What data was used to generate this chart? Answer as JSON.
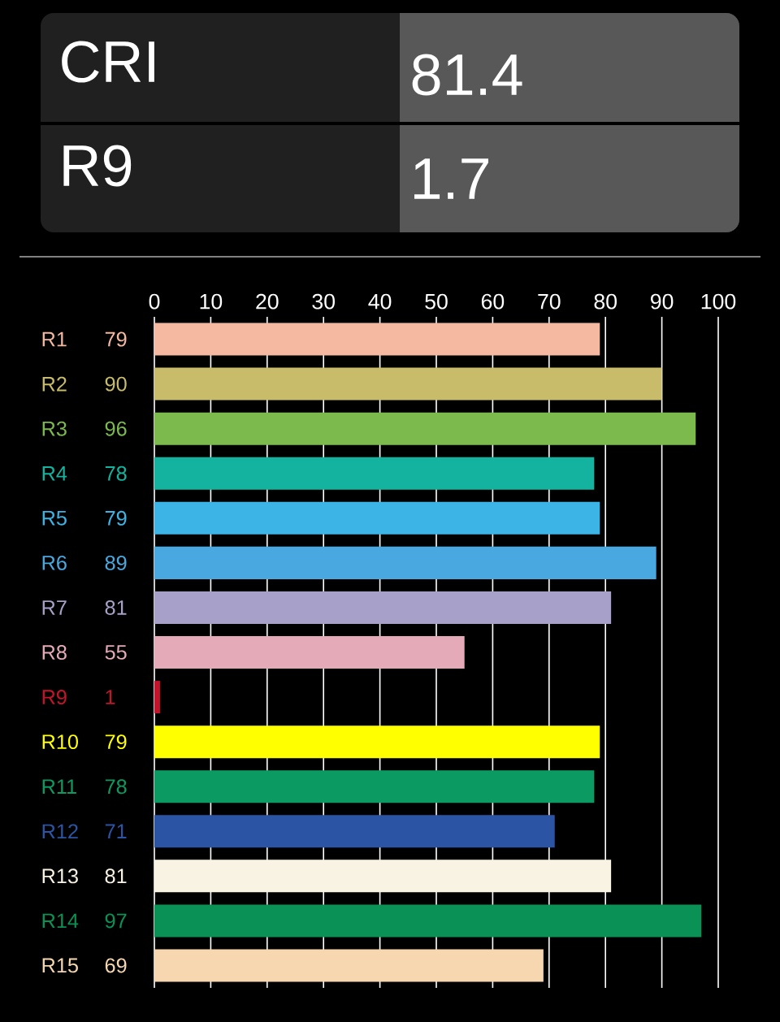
{
  "chart_data": {
    "type": "bar",
    "orientation": "horizontal",
    "categories": [
      "R1",
      "R2",
      "R3",
      "R4",
      "R5",
      "R6",
      "R7",
      "R8",
      "R9",
      "R10",
      "R11",
      "R12",
      "R13",
      "R14",
      "R15"
    ],
    "values": [
      79,
      90,
      96,
      78,
      79,
      89,
      81,
      55,
      1,
      79,
      78,
      71,
      81,
      97,
      69
    ],
    "colors": [
      "#f4b9a0",
      "#c8bc6a",
      "#7dba4e",
      "#13b39f",
      "#3cb4e6",
      "#4aa8e0",
      "#a7a0c9",
      "#e4aab8",
      "#c4142b",
      "#ffff00",
      "#0b9b62",
      "#2b55a4",
      "#f9f3e4",
      "#0a9156",
      "#f7d7b0"
    ],
    "xlim": [
      0,
      100
    ],
    "xticks": [
      0,
      10,
      20,
      30,
      40,
      50,
      60,
      70,
      80,
      90,
      100
    ],
    "grid": "x",
    "data_labels": true,
    "annotations": [
      "CRI",
      "81.4",
      "R9",
      "1.7"
    ]
  }
}
